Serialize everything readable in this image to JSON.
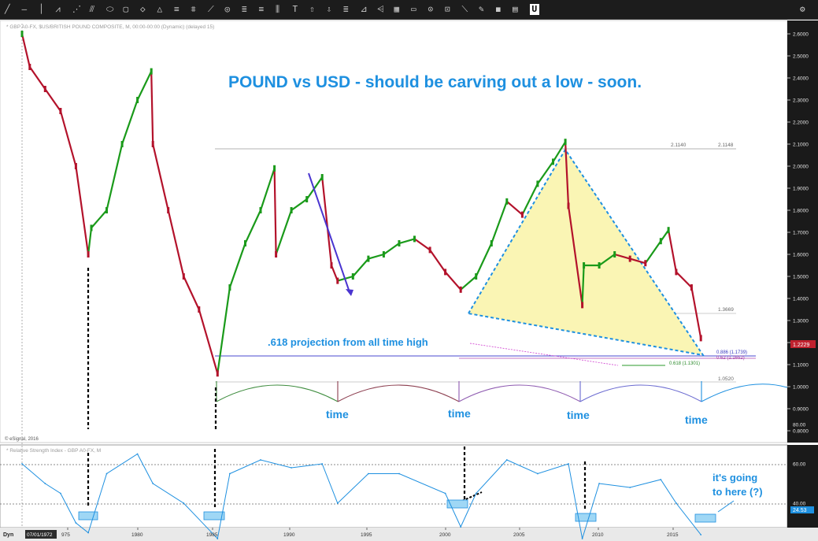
{
  "toolbar": {
    "tools": [
      "line-tool",
      "ray-tool",
      "vline-tool",
      "pitchfork-tool",
      "fan-tool",
      "gann-tool",
      "regression-tool",
      "ellipse-tool",
      "rectangle-tool",
      "polygon-tool",
      "triangle-tool",
      "channel-tool",
      "cycle-tool",
      "trendline-tool",
      "circle-tool",
      "fib-tool",
      "fib-ext-tool",
      "fib-time-tool",
      "text-tool",
      "arrow-up-tool",
      "arrow-down-tool",
      "note-tool",
      "zoom-tool",
      "brush-tool",
      "grid-tool",
      "layers-tool",
      "measure-tool",
      "snap-tool",
      "pencil-tool",
      "eraser-tool",
      "comment-tool",
      "u-tool"
    ],
    "active_tool_label": "U"
  },
  "chart_header": "* GBP A0-FX, $US/BRITISH POUND COMPOSITE, M, 00:00-00:00 (Dynamic) (delayed 15)",
  "copyright": "© eSignal, 2016",
  "headline": "POUND vs USD - should be carving out a low - soon.",
  "annotations": {
    "projection": ".618 projection from all time high",
    "time_labels": [
      "time",
      "time",
      "time",
      "time"
    ],
    "rsi_note_line1": "it's going",
    "rsi_note_line2": "to here (?)"
  },
  "levels": {
    "top": "2.1140",
    "top_right": "2.1148",
    "mid": "1.3669",
    "fib1": "0.886 (1.1739)",
    "fib2": "0.62 (1.1652)",
    "fib3": "0.618 (1.1301)",
    "low": "1.0520"
  },
  "price_axis": {
    "ticks": [
      "2.6965",
      "2.6000",
      "2.5000",
      "2.4000",
      "2.3000",
      "2.2000",
      "2.1000",
      "2.0000",
      "1.9000",
      "1.8000",
      "1.7000",
      "1.6000",
      "1.5000",
      "1.4000",
      "1.3000",
      "1.2000",
      "1.1000",
      "1.0000",
      "0.9000",
      "0.8000"
    ],
    "current": "1.2229"
  },
  "rsi_panel": {
    "title": "* Relative Strength Index - GBP A0-FX, M",
    "ticks": [
      "80.00",
      "60.00",
      "40.00",
      "20.00"
    ],
    "current": "24.53"
  },
  "date_axis": {
    "mode": "Dyn",
    "cursor_date": "07/01/1972",
    "ticks": [
      "975",
      "1980",
      "1985",
      "1990",
      "1995",
      "2000",
      "2005",
      "2010",
      "2015"
    ]
  },
  "colors": {
    "price_up": "#1a9a1a",
    "price_down": "#b3122b",
    "annotation_blue": "#1e90e0",
    "triangle_fill": "#faf5b4",
    "rsi_line": "#1e90e0"
  },
  "chart_data": {
    "type": "line",
    "title": "POUND vs USD - should be carving out a low - soon.",
    "series": [
      {
        "name": "GBP A0-FX",
        "x": [
          1972.5,
          1973,
          1974,
          1975,
          1976,
          1976.8,
          1977,
          1978,
          1979,
          1980,
          1980.9,
          1981,
          1982,
          1983,
          1984,
          1985.2,
          1986,
          1987,
          1988,
          1988.9,
          1989,
          1990,
          1991,
          1992,
          1992.6,
          1993,
          1994,
          1995,
          1996,
          1997,
          1998,
          1999,
          2000,
          2001,
          2002,
          2003,
          2004,
          2005,
          2006,
          2007,
          2007.8,
          2008,
          2008.9,
          2009,
          2010,
          2011,
          2012,
          2013,
          2014,
          2014.5,
          2015,
          2016,
          2016.6
        ],
        "values": [
          2.6,
          2.45,
          2.35,
          2.25,
          2.0,
          1.6,
          1.72,
          1.8,
          2.1,
          2.3,
          2.43,
          2.1,
          1.8,
          1.5,
          1.35,
          1.06,
          1.45,
          1.65,
          1.8,
          1.99,
          1.6,
          1.8,
          1.85,
          1.95,
          1.55,
          1.48,
          1.5,
          1.58,
          1.6,
          1.65,
          1.67,
          1.62,
          1.52,
          1.44,
          1.5,
          1.65,
          1.84,
          1.78,
          1.92,
          2.02,
          2.11,
          1.82,
          1.37,
          1.55,
          1.55,
          1.6,
          1.58,
          1.56,
          1.66,
          1.71,
          1.52,
          1.45,
          1.22
        ]
      }
    ],
    "rsi": {
      "x": [
        1972.5,
        1974,
        1975,
        1976,
        1976.8,
        1978,
        1980,
        1981,
        1983,
        1985.2,
        1986,
        1988,
        1990,
        1992,
        1993,
        1995,
        1997,
        2000,
        2001,
        2002,
        2004,
        2006,
        2008,
        2008.9,
        2010,
        2012,
        2014,
        2015,
        2016.6
      ],
      "values": [
        60,
        50,
        45,
        30,
        25,
        55,
        65,
        50,
        40,
        22,
        55,
        62,
        58,
        60,
        40,
        55,
        55,
        45,
        28,
        45,
        62,
        55,
        60,
        22,
        50,
        48,
        52,
        40,
        24
      ]
    },
    "ylim": [
      0.8,
      2.6965
    ],
    "xlim": [
      1972.5,
      2019.5
    ],
    "rsi_ylim": [
      15,
      85
    ]
  }
}
